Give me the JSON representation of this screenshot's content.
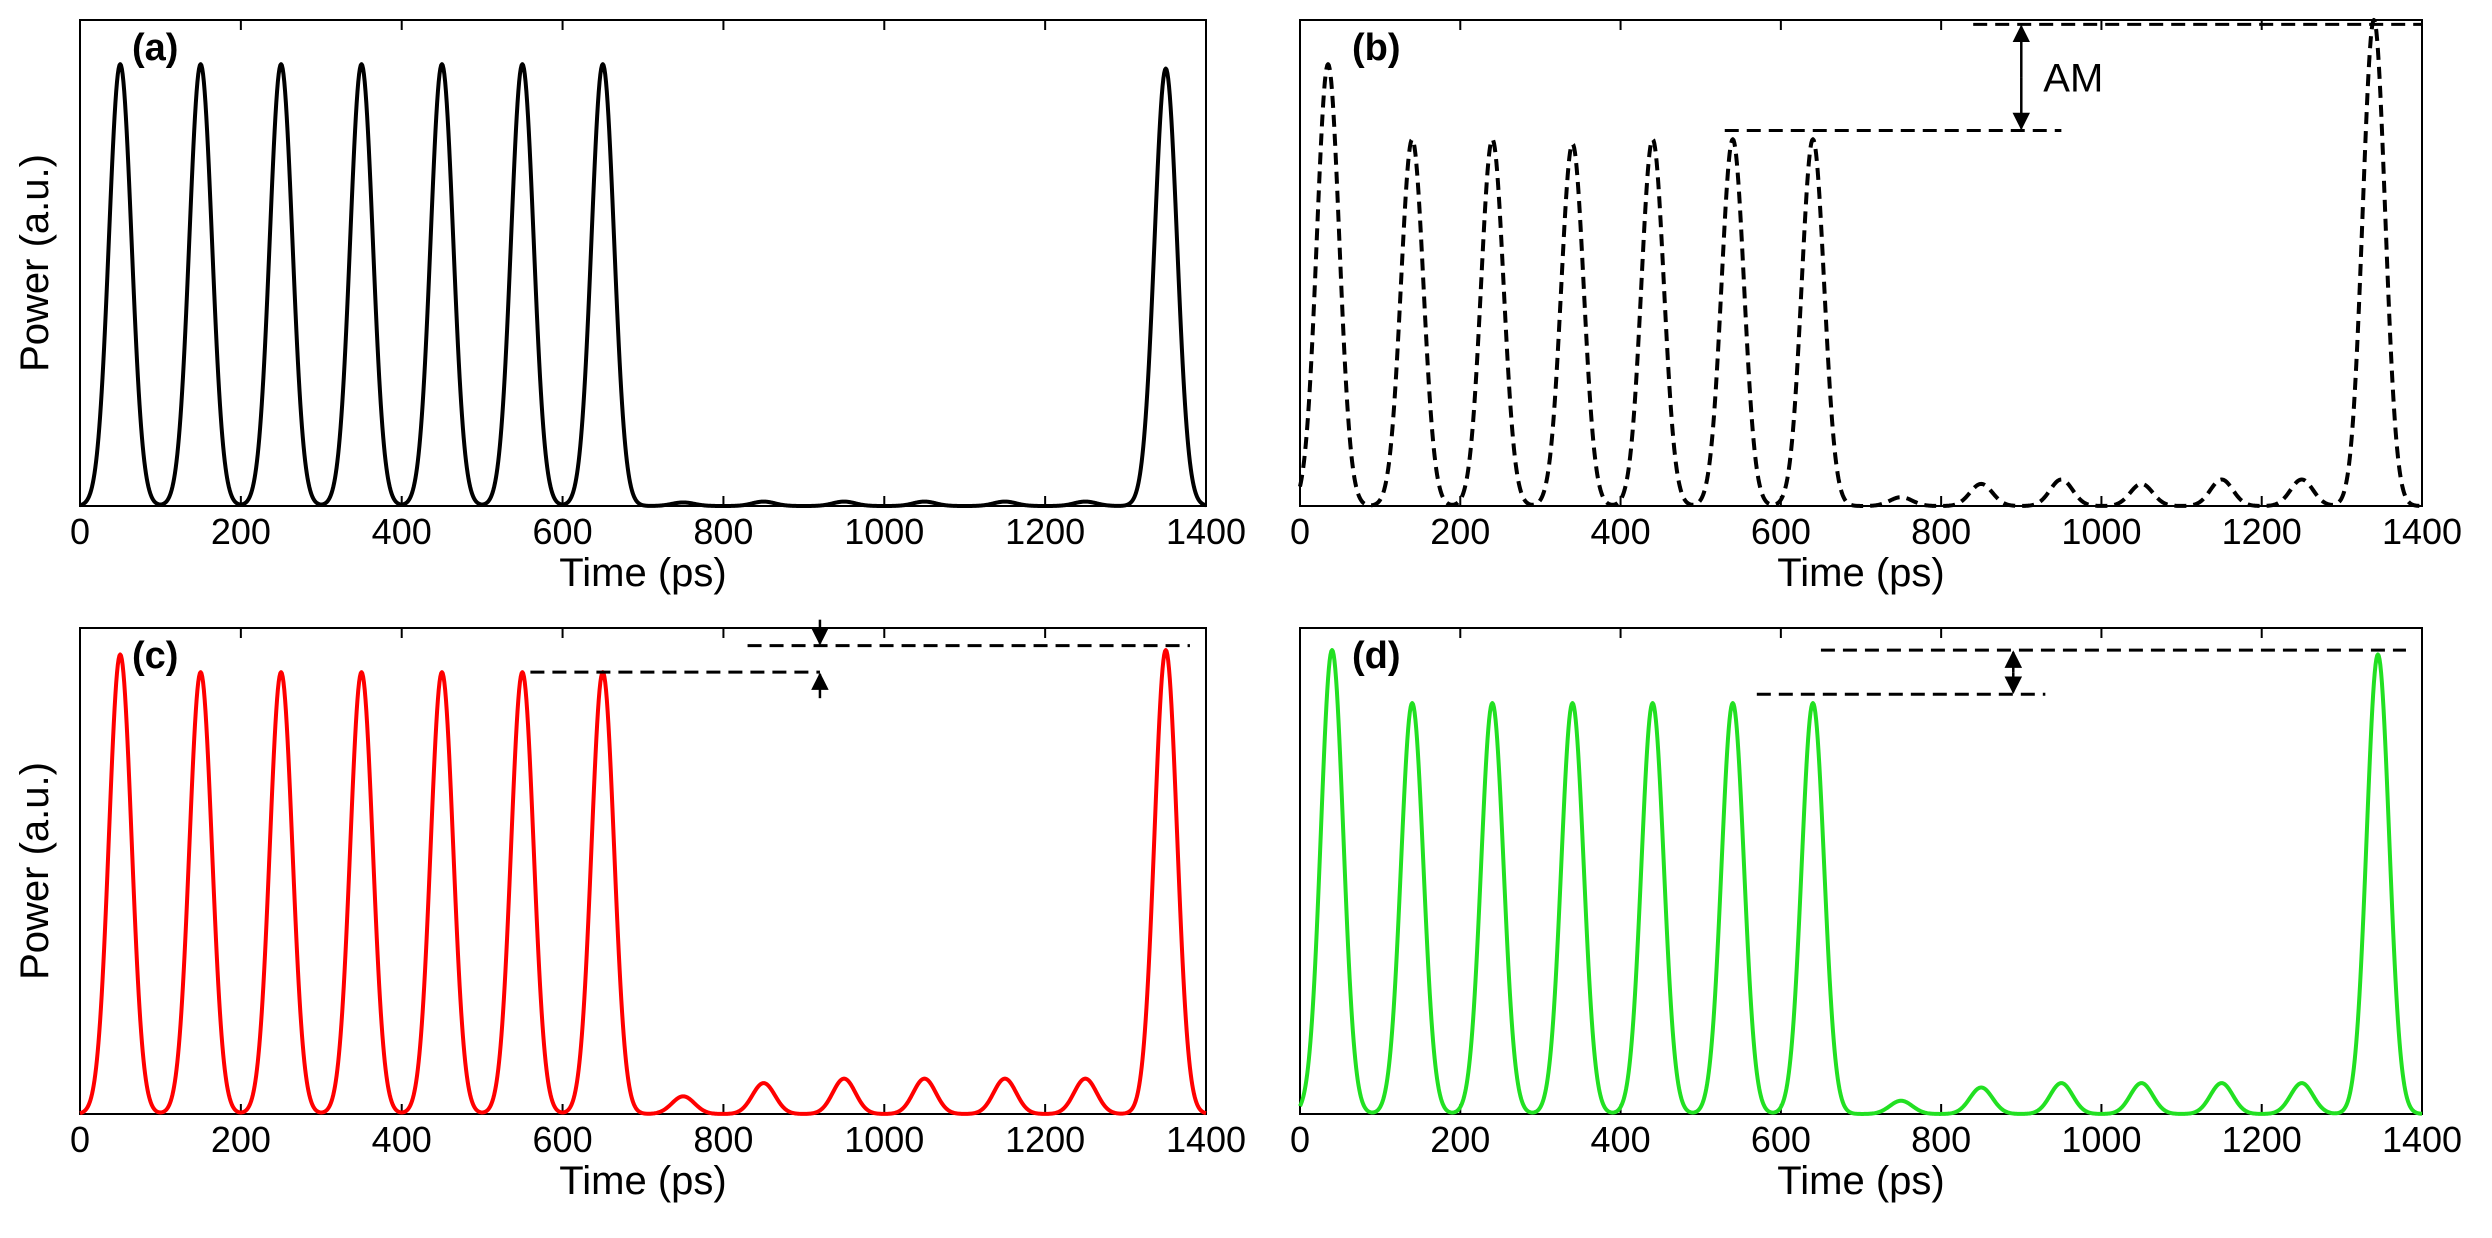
{
  "chart_data": [
    {
      "panel": "(a)",
      "type": "line",
      "xlabel": "Time (ps)",
      "ylabel": "Power (a.u.)",
      "xlim": [
        0,
        1400
      ],
      "ylim": [
        0,
        1.1
      ],
      "x_ticks": [
        "0",
        "200",
        "400",
        "600",
        "800",
        "1000",
        "1200",
        "1400"
      ],
      "color": "#000000",
      "line_style": "solid",
      "pulse_width_ps": 14,
      "pulses": [
        {
          "t": 50,
          "a": 1.0
        },
        {
          "t": 150,
          "a": 1.0
        },
        {
          "t": 250,
          "a": 1.0
        },
        {
          "t": 350,
          "a": 1.0
        },
        {
          "t": 450,
          "a": 1.0
        },
        {
          "t": 550,
          "a": 1.0
        },
        {
          "t": 650,
          "a": 1.0
        },
        {
          "t": 750,
          "a": 0.008
        },
        {
          "t": 850,
          "a": 0.01
        },
        {
          "t": 950,
          "a": 0.01
        },
        {
          "t": 1050,
          "a": 0.01
        },
        {
          "t": 1150,
          "a": 0.01
        },
        {
          "t": 1250,
          "a": 0.01
        },
        {
          "t": 1350,
          "a": 0.99
        }
      ],
      "annotation": null
    },
    {
      "panel": "(b)",
      "type": "line",
      "xlabel": "Time (ps)",
      "ylabel": "",
      "xlim": [
        0,
        1400
      ],
      "ylim": [
        0,
        1.1
      ],
      "x_ticks": [
        "0",
        "200",
        "400",
        "600",
        "800",
        "1000",
        "1200",
        "1400"
      ],
      "color": "#000000",
      "line_style": "dashed",
      "pulse_width_ps": 14,
      "pulses": [
        {
          "t": 35,
          "a": 1.0
        },
        {
          "t": 140,
          "a": 0.83
        },
        {
          "t": 240,
          "a": 0.83
        },
        {
          "t": 340,
          "a": 0.82
        },
        {
          "t": 440,
          "a": 0.83
        },
        {
          "t": 540,
          "a": 0.83
        },
        {
          "t": 640,
          "a": 0.83
        },
        {
          "t": 750,
          "a": 0.02
        },
        {
          "t": 850,
          "a": 0.05
        },
        {
          "t": 950,
          "a": 0.06
        },
        {
          "t": 1050,
          "a": 0.05
        },
        {
          "t": 1150,
          "a": 0.06
        },
        {
          "t": 1250,
          "a": 0.06
        },
        {
          "t": 1340,
          "a": 1.1
        }
      ],
      "annotation": {
        "low_from_t": 530,
        "low_to_t": 950,
        "low_y": 0.85,
        "high_from_t": 840,
        "high_to_t": 1400,
        "high_y": 1.09,
        "arrow_t": 900,
        "arrow_style": "outward-between",
        "label": "AM"
      }
    },
    {
      "panel": "(c)",
      "type": "line",
      "xlabel": "Time (ps)",
      "ylabel": "Power (a.u.)",
      "xlim": [
        0,
        1400
      ],
      "ylim": [
        0,
        1.1
      ],
      "x_ticks": [
        "0",
        "200",
        "400",
        "600",
        "800",
        "1000",
        "1200",
        "1400"
      ],
      "color": "#ff0000",
      "line_style": "solid",
      "pulse_width_ps": 14,
      "pulses": [
        {
          "t": 50,
          "a": 1.04
        },
        {
          "t": 150,
          "a": 1.0
        },
        {
          "t": 250,
          "a": 1.0
        },
        {
          "t": 350,
          "a": 1.0
        },
        {
          "t": 450,
          "a": 1.0
        },
        {
          "t": 550,
          "a": 1.0
        },
        {
          "t": 650,
          "a": 1.0
        },
        {
          "t": 750,
          "a": 0.04
        },
        {
          "t": 850,
          "a": 0.07
        },
        {
          "t": 950,
          "a": 0.08
        },
        {
          "t": 1050,
          "a": 0.08
        },
        {
          "t": 1150,
          "a": 0.08
        },
        {
          "t": 1250,
          "a": 0.08
        },
        {
          "t": 1350,
          "a": 1.05
        }
      ],
      "annotation": {
        "low_from_t": 560,
        "low_to_t": 920,
        "low_y": 1.0,
        "high_from_t": 830,
        "high_to_t": 1380,
        "high_y": 1.06,
        "arrow_t": 920,
        "arrow_style": "inward-outside",
        "label": ""
      }
    },
    {
      "panel": "(d)",
      "type": "line",
      "xlabel": "Time (ps)",
      "ylabel": "",
      "xlim": [
        0,
        1400
      ],
      "ylim": [
        0,
        1.1
      ],
      "x_ticks": [
        "0",
        "200",
        "400",
        "600",
        "800",
        "1000",
        "1200",
        "1400"
      ],
      "color": "#22e022",
      "line_style": "solid",
      "pulse_width_ps": 14,
      "pulses": [
        {
          "t": 40,
          "a": 1.05
        },
        {
          "t": 140,
          "a": 0.93
        },
        {
          "t": 240,
          "a": 0.93
        },
        {
          "t": 340,
          "a": 0.93
        },
        {
          "t": 440,
          "a": 0.93
        },
        {
          "t": 540,
          "a": 0.93
        },
        {
          "t": 640,
          "a": 0.93
        },
        {
          "t": 750,
          "a": 0.03
        },
        {
          "t": 850,
          "a": 0.06
        },
        {
          "t": 950,
          "a": 0.07
        },
        {
          "t": 1050,
          "a": 0.07
        },
        {
          "t": 1150,
          "a": 0.07
        },
        {
          "t": 1250,
          "a": 0.07
        },
        {
          "t": 1345,
          "a": 1.04
        }
      ],
      "annotation": {
        "low_from_t": 570,
        "low_to_t": 930,
        "low_y": 0.95,
        "high_from_t": 650,
        "high_to_t": 1380,
        "high_y": 1.05,
        "arrow_t": 890,
        "arrow_style": "outward-between",
        "label": ""
      }
    }
  ]
}
